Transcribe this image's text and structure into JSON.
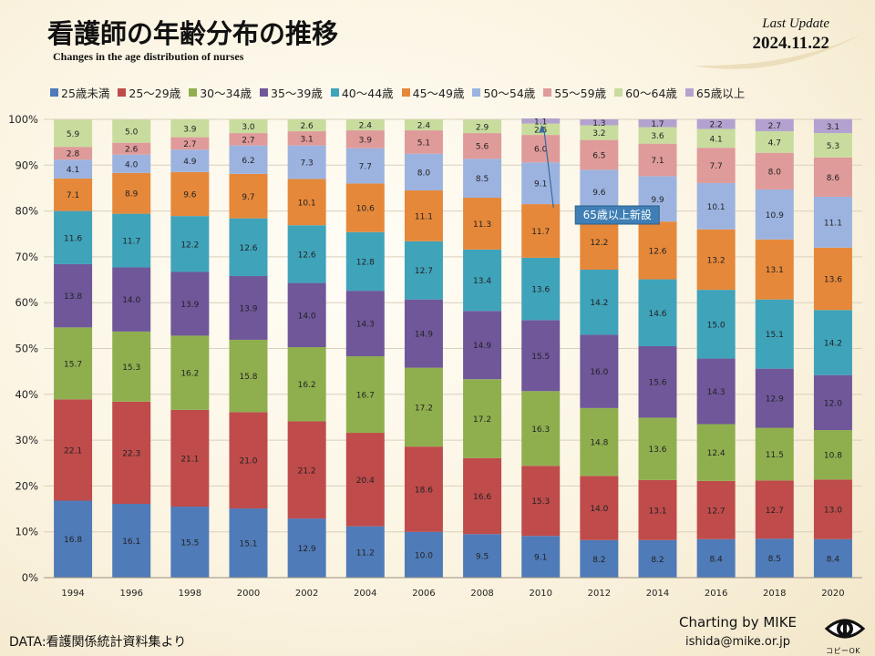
{
  "header": {
    "title": "看護師の年齢分布の推移",
    "subtitle": "Changes in the age distribution of nurses",
    "update_label": "Last Update",
    "update_date": "2024.11.22"
  },
  "footer": {
    "data_source": "DATA:看護関係統計資料集より",
    "credit_name": "Charting by MIKE",
    "credit_email": "ishida@mike.or.jp",
    "logo_text": "コピーOK"
  },
  "chart_data": {
    "type": "bar",
    "stacked": "percent",
    "categories": [
      "1994",
      "1996",
      "1998",
      "2000",
      "2002",
      "2004",
      "2006",
      "2008",
      "2010",
      "2012",
      "2014",
      "2016",
      "2018",
      "2020"
    ],
    "ylim": [
      0,
      100
    ],
    "yticks": [
      "0%",
      "10%",
      "20%",
      "30%",
      "40%",
      "50%",
      "60%",
      "70%",
      "80%",
      "90%",
      "100%"
    ],
    "legend_position": "top",
    "series": [
      {
        "name": "25歳未満",
        "color": "#4f7bb8",
        "values": [
          16.8,
          16.1,
          15.5,
          15.1,
          12.9,
          11.2,
          10.0,
          9.5,
          9.1,
          8.2,
          8.2,
          8.4,
          8.5,
          8.4
        ]
      },
      {
        "name": "25〜29歳",
        "color": "#bf4b4b",
        "values": [
          22.1,
          22.3,
          21.1,
          21.0,
          21.2,
          20.4,
          18.6,
          16.6,
          15.3,
          14.0,
          13.1,
          12.7,
          12.7,
          13.0
        ]
      },
      {
        "name": "30〜34歳",
        "color": "#8faf4f",
        "values": [
          15.7,
          15.3,
          16.2,
          15.8,
          16.2,
          16.7,
          17.2,
          17.2,
          16.3,
          14.8,
          13.6,
          12.4,
          11.5,
          10.8
        ]
      },
      {
        "name": "35〜39歳",
        "color": "#6f579a",
        "values": [
          13.8,
          14.0,
          13.9,
          13.9,
          14.0,
          14.3,
          14.9,
          14.9,
          15.5,
          16.0,
          15.6,
          14.3,
          12.9,
          12.0
        ]
      },
      {
        "name": "40〜44歳",
        "color": "#3fa3ba",
        "values": [
          11.6,
          11.7,
          12.2,
          12.6,
          12.6,
          12.8,
          12.7,
          13.4,
          13.6,
          14.2,
          14.6,
          15.0,
          15.1,
          14.2
        ]
      },
      {
        "name": "45〜49歳",
        "color": "#e5883a",
        "values": [
          7.1,
          8.9,
          9.6,
          9.7,
          10.1,
          10.6,
          11.1,
          11.3,
          11.7,
          12.2,
          12.6,
          13.2,
          13.1,
          13.6
        ]
      },
      {
        "name": "50〜54歳",
        "color": "#9cb3e0",
        "values": [
          4.1,
          4.0,
          4.9,
          6.2,
          7.3,
          7.7,
          8.0,
          8.5,
          9.1,
          9.6,
          9.9,
          10.1,
          10.9,
          11.1
        ]
      },
      {
        "name": "55〜59歳",
        "color": "#df9a9a",
        "values": [
          2.8,
          2.6,
          2.7,
          2.7,
          3.1,
          3.9,
          5.1,
          5.6,
          6.0,
          6.5,
          7.1,
          7.7,
          8.0,
          8.6
        ]
      },
      {
        "name": "60〜64歳",
        "color": "#c8dc9e",
        "values": [
          5.9,
          5.0,
          3.9,
          3.0,
          2.6,
          2.4,
          2.4,
          2.9,
          2.5,
          3.2,
          3.6,
          4.1,
          4.7,
          5.3
        ]
      },
      {
        "name": "65歳以上",
        "color": "#b3a2cf",
        "values": [
          null,
          null,
          null,
          null,
          null,
          null,
          null,
          null,
          1.1,
          1.3,
          1.7,
          2.2,
          2.7,
          3.1
        ]
      }
    ],
    "annotation": {
      "text": "65歳以上新設",
      "category": "2010"
    }
  }
}
